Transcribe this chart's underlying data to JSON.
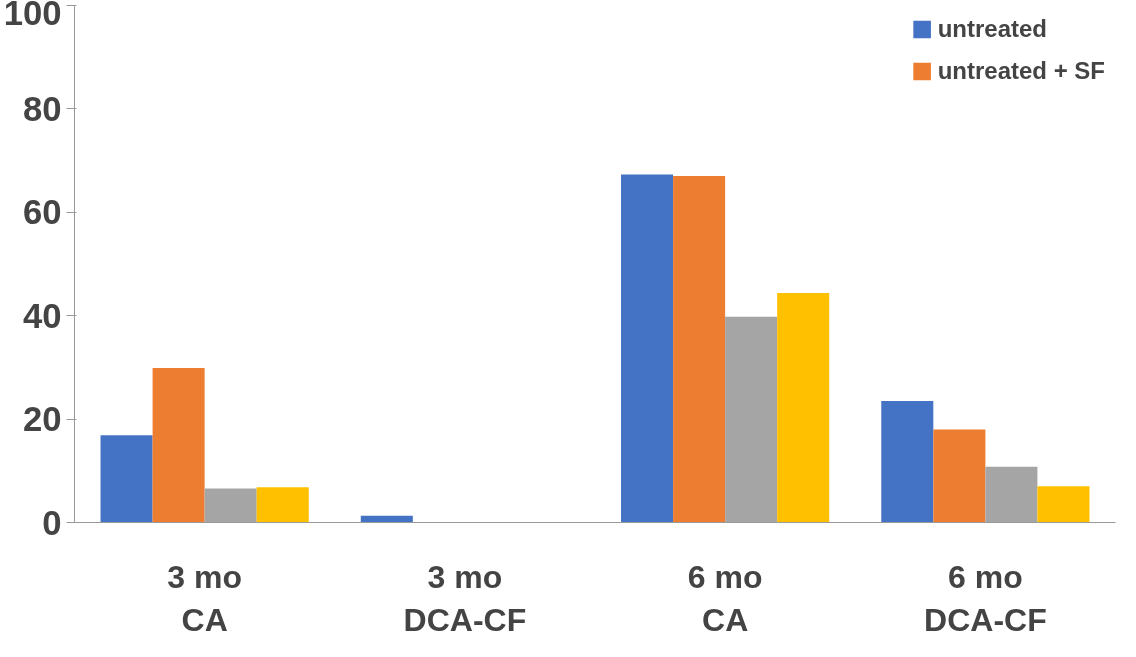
{
  "chart_data": {
    "type": "bar",
    "categories": [
      "3 mo\nCA",
      "3 mo\nDCA-CF",
      "6 mo\nCA",
      "6 mo\nDCA-CF"
    ],
    "series": [
      {
        "name": "untreated",
        "color": "#4472c4",
        "values": [
          16.9,
          1.3,
          67.3,
          23.5
        ]
      },
      {
        "name": "untreated + SF",
        "color": "#ed7d31",
        "values": [
          29.9,
          0,
          67.0,
          18.0
        ]
      },
      {
        "color": "#a5a5a5",
        "values": [
          6.6,
          0,
          39.8,
          10.8
        ]
      },
      {
        "color": "#ffc000",
        "values": [
          6.8,
          0,
          44.4,
          7.0
        ]
      }
    ],
    "ylim": [
      0,
      100
    ],
    "yticks": [
      0,
      20,
      40,
      60,
      80,
      100
    ],
    "grid": false,
    "legend": "top right"
  }
}
